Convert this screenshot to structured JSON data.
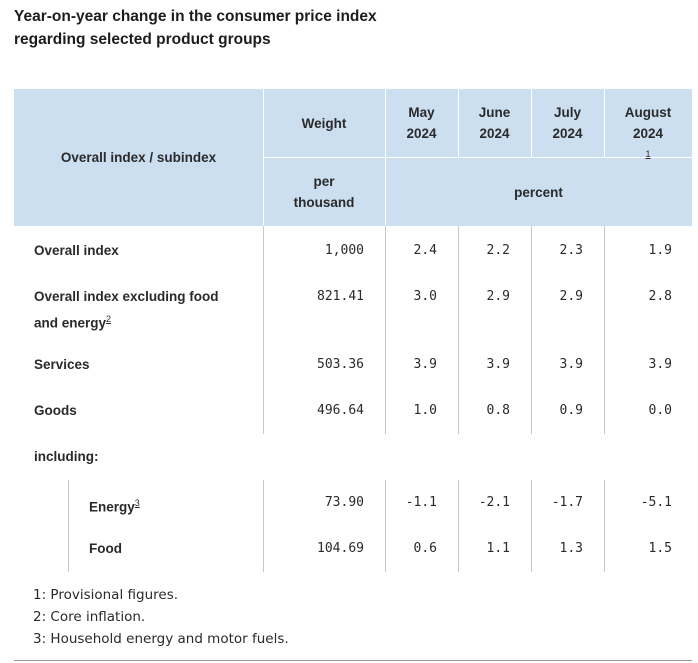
{
  "title": {
    "line1": "Year-on-year change in the consumer price index",
    "line2": "regarding selected product groups"
  },
  "header": {
    "index_label": "Overall index / subindex",
    "weight_label": "Weight",
    "weight_unit_line1": "per",
    "weight_unit_line2": "thousand",
    "percent_label": "percent",
    "months": [
      {
        "line1": "May",
        "line2": "2024",
        "footnote": ""
      },
      {
        "line1": "June",
        "line2": "2024",
        "footnote": ""
      },
      {
        "line1": "July",
        "line2": "2024",
        "footnote": ""
      },
      {
        "line1": "August",
        "line2": "2024",
        "footnote": "1"
      }
    ]
  },
  "rows": [
    {
      "label": "Overall index",
      "footnote": "",
      "weight": "1,000",
      "values": [
        "2.4",
        "2.2",
        "2.3",
        "1.9"
      ]
    },
    {
      "label_line1": "Overall index excluding food",
      "label_line2": "and energy",
      "footnote": "2",
      "weight": "821.41",
      "values": [
        "3.0",
        "2.9",
        "2.9",
        "2.8"
      ]
    },
    {
      "label": "Services",
      "footnote": "",
      "weight": "503.36",
      "values": [
        "3.9",
        "3.9",
        "3.9",
        "3.9"
      ]
    },
    {
      "label": "Goods",
      "footnote": "",
      "weight": "496.64",
      "values": [
        "1.0",
        "0.8",
        "0.9",
        "0.0"
      ]
    },
    {
      "label": "including:"
    },
    {
      "label": "Energy",
      "footnote": "3",
      "weight": "73.90",
      "values": [
        "-1.1",
        "-2.1",
        "-1.7",
        "-5.1"
      ]
    },
    {
      "label": "Food",
      "footnote": "",
      "weight": "104.69",
      "values": [
        "0.6",
        "1.1",
        "1.3",
        "1.5"
      ]
    }
  ],
  "footnotes": [
    "1: Provisional figures.",
    "2: Core inflation.",
    "3: Household energy and motor fuels."
  ]
}
